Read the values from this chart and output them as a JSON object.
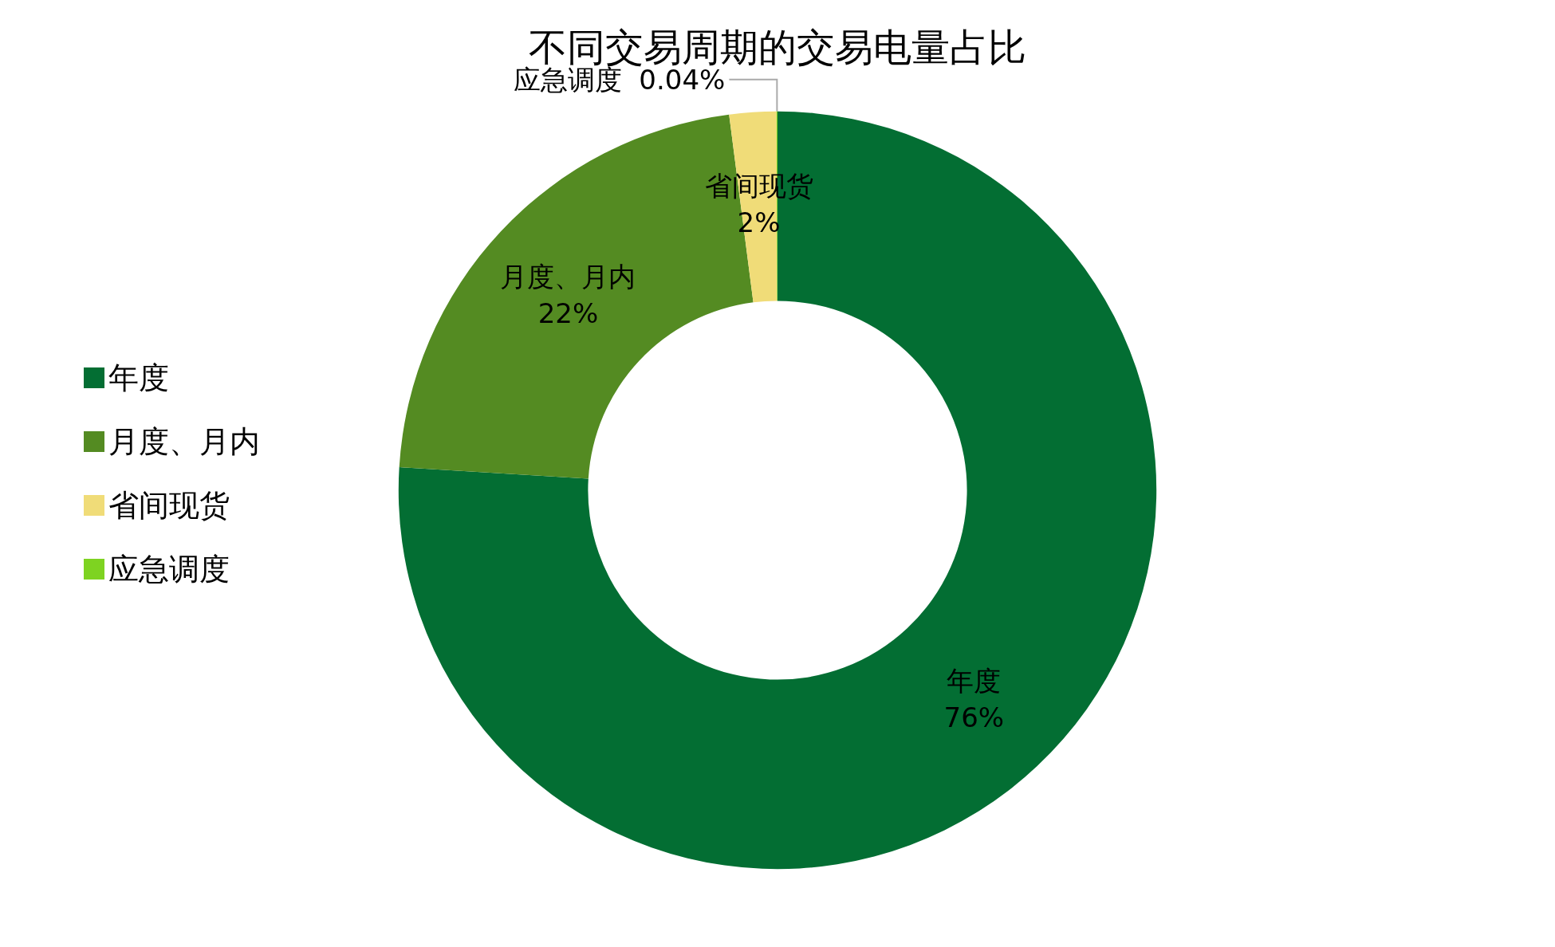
{
  "chart_data": {
    "type": "donut",
    "title": "不同交易周期的交易电量占比",
    "categories": [
      "年度",
      "月度、月内",
      "省间现货",
      "应急调度"
    ],
    "values": [
      76,
      22,
      2,
      0.04
    ],
    "value_labels": [
      "76%",
      "22%",
      "2%",
      "0.04%"
    ],
    "colors": [
      "#036e33",
      "#548b22",
      "#f0dc78",
      "#7ed321"
    ],
    "legend": "left"
  }
}
